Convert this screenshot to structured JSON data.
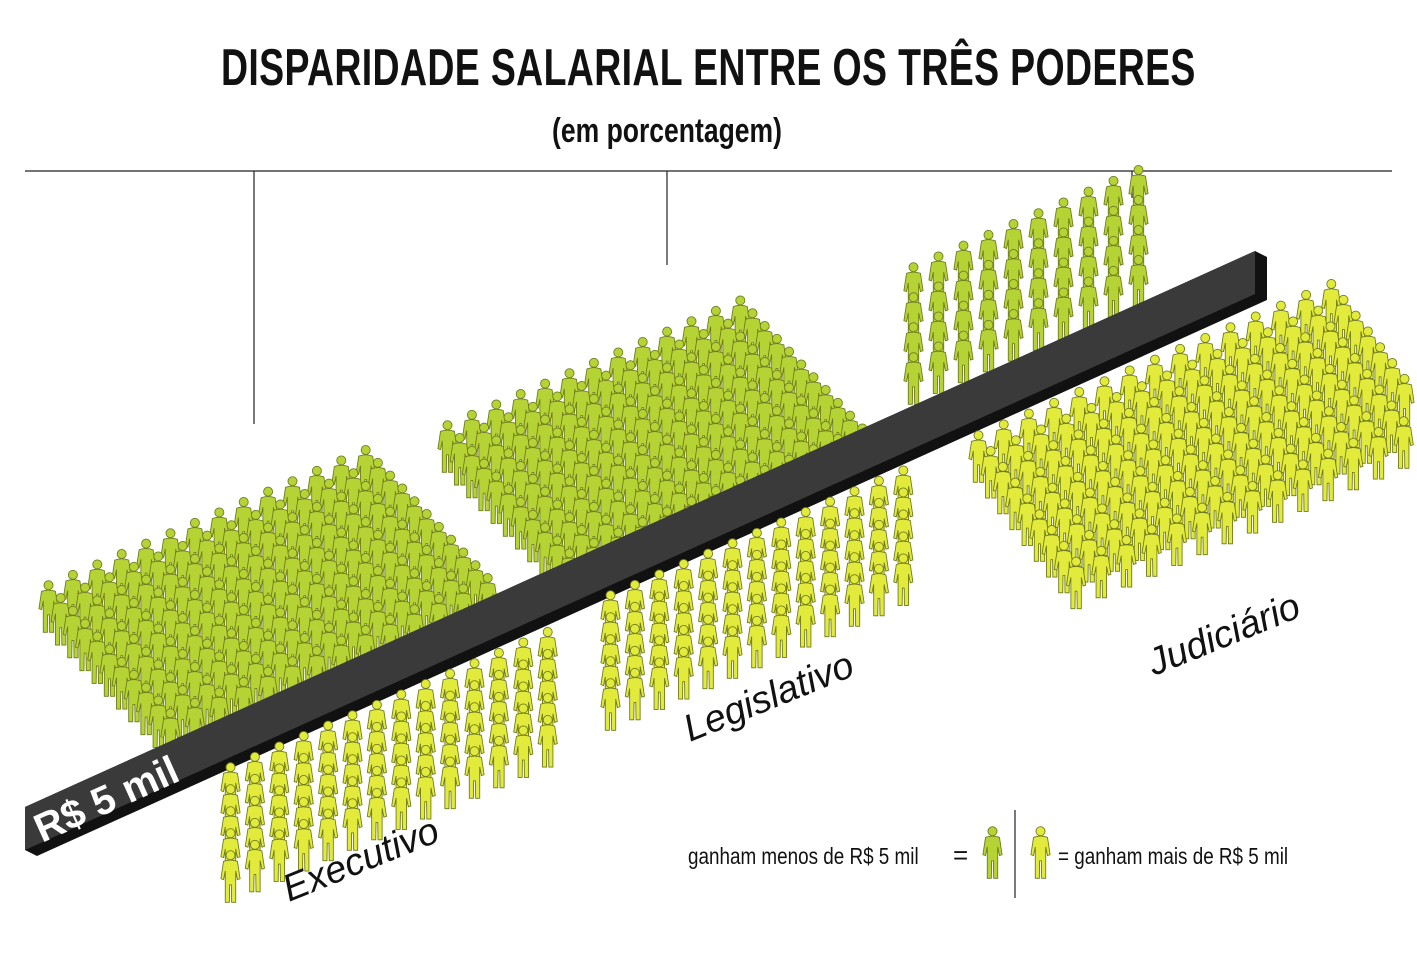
{
  "chart_data": {
    "type": "pictogram",
    "title": "DISPARIDADE SALARIAL ENTRE OS TRÊS PODERES",
    "subtitle": "(em porcentagem)",
    "threshold_label": "R$ 5 mil",
    "categories": [
      "Executivo",
      "Legislativo",
      "Judiciário"
    ],
    "series": [
      {
        "name": "ganham menos de R$ 5 mil",
        "color": "#b5d334"
      },
      {
        "name": "ganham mais de R$ 5 mil",
        "color": "#e2ea3b"
      }
    ],
    "groups": [
      {
        "category": "Executivo",
        "below_grid": [
          14,
          11
        ],
        "above_grid": [
          14,
          5
        ]
      },
      {
        "category": "Legislativo",
        "below_grid": [
          13,
          11
        ],
        "above_grid": [
          13,
          5
        ]
      },
      {
        "category": "Judiciário",
        "below_grid": [
          10,
          4
        ],
        "above_grid": [
          15,
          9
        ]
      }
    ]
  },
  "legend": {
    "less_text": "ganham menos de R$ 5 mil",
    "more_text": "ganham mais de R$ 5 mil",
    "equals": "="
  },
  "colors": {
    "less": "#b5d334",
    "more": "#e2ea3b",
    "outline": "#6d7a1e",
    "bar": "#3a3a3a",
    "bar_edge": "#111111"
  }
}
